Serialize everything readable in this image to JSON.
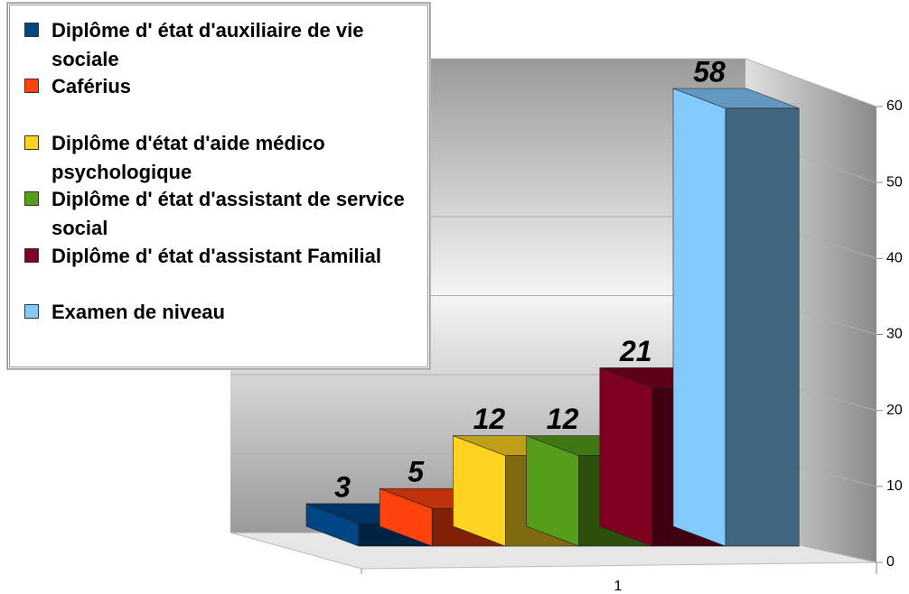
{
  "chart_data": {
    "type": "bar3d",
    "categories": [
      "1"
    ],
    "series": [
      {
        "name": "Diplôme d' état d'auxiliaire de vie sociale",
        "color": "#004586",
        "values": [
          3
        ]
      },
      {
        "name": "Caférius",
        "color": "#ff420e",
        "values": [
          5
        ]
      },
      {
        "name": "Diplôme d'état d'aide médico psychologique",
        "color": "#ffd320",
        "values": [
          12
        ]
      },
      {
        "name": "Diplôme d' état d'assistant de service social",
        "color": "#579d1c",
        "values": [
          12
        ]
      },
      {
        "name": "Diplôme d' état d'assistant Familial",
        "color": "#7e0021",
        "values": [
          21
        ]
      },
      {
        "name": "Examen de niveau",
        "color": "#83caff",
        "values": [
          58
        ]
      }
    ],
    "ylim": [
      0,
      60
    ],
    "yticks": [
      0,
      10,
      20,
      30,
      40,
      50,
      60
    ],
    "grid": true,
    "legend": "top-left"
  }
}
